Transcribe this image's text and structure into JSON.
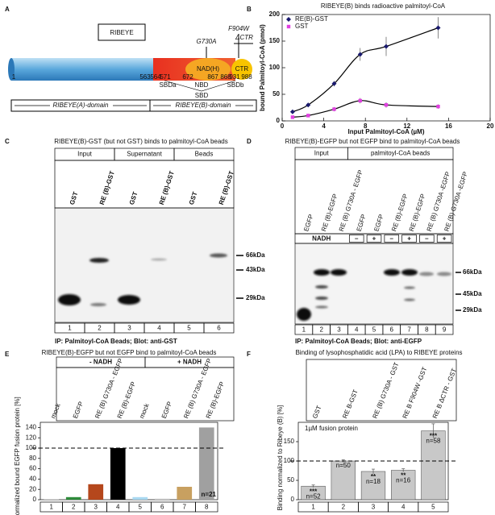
{
  "panel_a": {
    "label": "A",
    "protein": "RIBEYE",
    "mutations": [
      "G730A",
      "F904W",
      "ΔCTR"
    ],
    "domains": [
      "NAD(H)",
      "CTR"
    ],
    "positions": [
      1,
      563,
      564,
      571,
      672,
      867,
      868,
      931,
      988
    ],
    "subdomains": [
      "SBDa",
      "NBD",
      "SBD",
      "SBDb"
    ],
    "regions": [
      "RIBEYE(A)-domain",
      "RIBEYE(B)-domain"
    ]
  },
  "chart_data": [
    {
      "label": "B",
      "type": "scatter",
      "title": "RIBEYE(B) binds radioactive palmitoyl-CoA",
      "x_label": "Input Palmitoyl-CoA (µM)",
      "y_label": "bound Palmitoyl-CoA (pmol)",
      "xlim": [
        0,
        20
      ],
      "xticks": [
        0,
        4,
        8,
        12,
        16,
        20
      ],
      "ylim": [
        0,
        200
      ],
      "yticks": [
        0,
        50,
        100,
        150,
        200
      ],
      "legend": "top-left",
      "fit": "smooth",
      "series": [
        {
          "name": "RE(B)-GST",
          "color": "#1a1a6e",
          "marker": "diamond",
          "x": [
            1,
            2.5,
            5,
            7.5,
            10,
            15
          ],
          "values": [
            17,
            30,
            70,
            125,
            140,
            175
          ],
          "errors": [
            3,
            4,
            5,
            12,
            18,
            20
          ]
        },
        {
          "name": "GST",
          "color": "#e040e0",
          "marker": "square",
          "x": [
            1,
            2.5,
            5,
            7.5,
            10,
            15
          ],
          "values": [
            7,
            10,
            22,
            38,
            30,
            27
          ],
          "errors": [
            2,
            3,
            4,
            5,
            5,
            4
          ]
        }
      ]
    },
    {
      "label": "E",
      "type": "bar",
      "title": "RIBEYE(B)-EGFP but not EGFP bind to palmitoyl-CoA beads",
      "groups": [
        "- NADH",
        "+ NADH"
      ],
      "categories": [
        "mock",
        "EGFP",
        "RE (B) G730A - EGFP",
        "RE (B)-EGFP",
        "mock",
        "EGFP",
        "RE (B) G730A - EGFP",
        "RE (B)-EGFP"
      ],
      "lane_numbers": [
        1,
        2,
        3,
        4,
        5,
        6,
        7,
        8
      ],
      "values": [
        0.5,
        5,
        30,
        100,
        5,
        2,
        25,
        140
      ],
      "colors": [
        "#dddddd",
        "#2e8b3a",
        "#b5471c",
        "#000000",
        "#a8d8f0",
        "#cccccc",
        "#c8a060",
        "#a0a0a0"
      ],
      "y_label": "normalized bound EGFP fusion protein [%]",
      "ylim": [
        0,
        150
      ],
      "yticks": [
        0,
        20,
        40,
        60,
        80,
        100,
        120,
        140
      ],
      "reference_line": 100,
      "annotation": "n=21"
    },
    {
      "label": "F",
      "type": "bar",
      "title": "Binding of lysophosphatidic acid (LPA) to RIBEYE proteins",
      "categories": [
        "GST",
        "RE B-GST",
        "RE (B) G730A - GST",
        "RE B F904W -GST",
        "RE B ΔCTR - GST"
      ],
      "lane_numbers": [
        1,
        2,
        3,
        4,
        5
      ],
      "values": [
        35,
        100,
        73,
        76,
        178
      ],
      "errors": [
        3,
        3,
        6,
        4,
        18
      ],
      "color": "#c8c8c8",
      "y_label": "Binding normalized to Ribeye (B) [%]",
      "ylim": [
        0,
        200
      ],
      "yticks": [
        0,
        50,
        100,
        150
      ],
      "reference_line": 100,
      "note": "1µM fusion protein",
      "significance": [
        "***",
        null,
        "**",
        "**",
        "***"
      ],
      "n_labels": [
        "n=52",
        "n=50",
        "n=18",
        "n=16",
        "n=58"
      ]
    }
  ],
  "panel_c": {
    "label": "C",
    "title": "RIBEYE(B)-GST (but not GST) binds to palmitoyl-CoA beads",
    "groups": [
      "Input",
      "Supernatant",
      "Beads"
    ],
    "lanes": [
      "GST",
      "RE (B)-GST",
      "GST",
      "RE (B)-GST",
      "GST",
      "RE (B)-GST"
    ],
    "lane_numbers": [
      1,
      2,
      3,
      4,
      5,
      6
    ],
    "markers": [
      "66kDa",
      "43kDa",
      "29kDa"
    ],
    "caption": "IP: Palmitoyl-CoA Beads; Blot: anti-GST"
  },
  "panel_d": {
    "label": "D",
    "title": "RIBEYE(B)-EGFP but not EGFP bind to palmitoyl-CoA beads",
    "groups": [
      "Input",
      "palmitoyl-CoA beads"
    ],
    "lanes": [
      "EGFP",
      "RE (B)-EGFP",
      "RE (B) G730A - EGFP",
      "EGFP",
      "EGFP",
      "RE (B)-EGFP",
      "RE (B)-EGFP",
      "RE (B) G730A -EGFP",
      "RE (B) G730A -EGFP"
    ],
    "nadh_label": "NADH",
    "nadh": [
      "–",
      "+",
      "–",
      "+",
      "–",
      "+"
    ],
    "lane_numbers": [
      1,
      2,
      3,
      4,
      5,
      6,
      7,
      8,
      9
    ],
    "markers": [
      "66kDa",
      "45kDa",
      "29kDa"
    ],
    "caption": "IP: Palmitoyl-CoA Beads; Blot: anti-EGFP"
  }
}
